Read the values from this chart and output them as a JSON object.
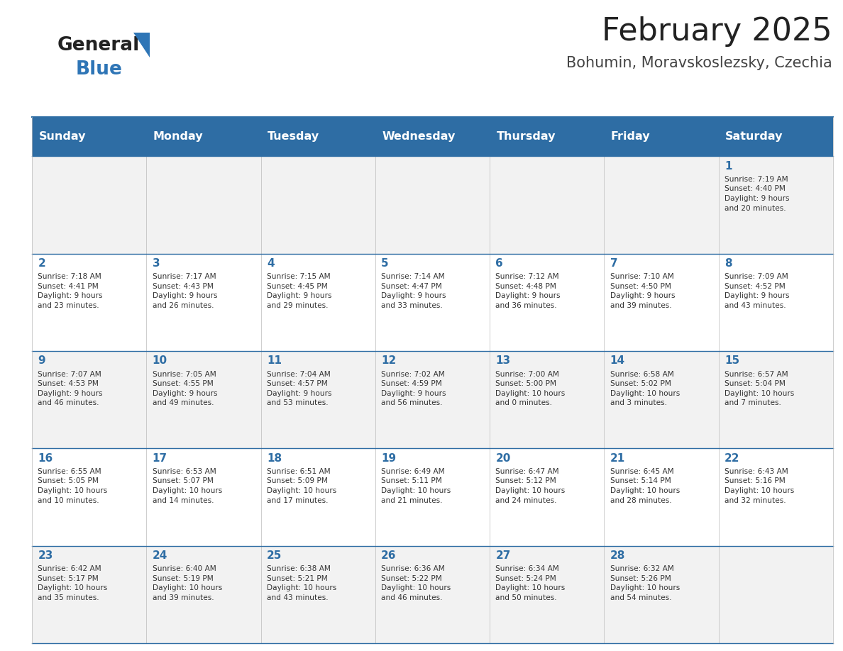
{
  "title": "February 2025",
  "subtitle": "Bohumin, Moravskoslezsky, Czechia",
  "days_of_week": [
    "Sunday",
    "Monday",
    "Tuesday",
    "Wednesday",
    "Thursday",
    "Friday",
    "Saturday"
  ],
  "header_bg": "#2E6DA4",
  "header_text": "#FFFFFF",
  "cell_bg": "#F2F2F2",
  "cell_bg_alt": "#FFFFFF",
  "border_color": "#2E6DA4",
  "day_number_color": "#2E6DA4",
  "cell_text_color": "#333333",
  "title_color": "#222222",
  "subtitle_color": "#444444",
  "logo_general_color": "#222222",
  "logo_blue_color": "#2E75B6",
  "weeks": [
    [
      {
        "day": null,
        "info": null
      },
      {
        "day": null,
        "info": null
      },
      {
        "day": null,
        "info": null
      },
      {
        "day": null,
        "info": null
      },
      {
        "day": null,
        "info": null
      },
      {
        "day": null,
        "info": null
      },
      {
        "day": 1,
        "info": "Sunrise: 7:19 AM\nSunset: 4:40 PM\nDaylight: 9 hours\nand 20 minutes."
      }
    ],
    [
      {
        "day": 2,
        "info": "Sunrise: 7:18 AM\nSunset: 4:41 PM\nDaylight: 9 hours\nand 23 minutes."
      },
      {
        "day": 3,
        "info": "Sunrise: 7:17 AM\nSunset: 4:43 PM\nDaylight: 9 hours\nand 26 minutes."
      },
      {
        "day": 4,
        "info": "Sunrise: 7:15 AM\nSunset: 4:45 PM\nDaylight: 9 hours\nand 29 minutes."
      },
      {
        "day": 5,
        "info": "Sunrise: 7:14 AM\nSunset: 4:47 PM\nDaylight: 9 hours\nand 33 minutes."
      },
      {
        "day": 6,
        "info": "Sunrise: 7:12 AM\nSunset: 4:48 PM\nDaylight: 9 hours\nand 36 minutes."
      },
      {
        "day": 7,
        "info": "Sunrise: 7:10 AM\nSunset: 4:50 PM\nDaylight: 9 hours\nand 39 minutes."
      },
      {
        "day": 8,
        "info": "Sunrise: 7:09 AM\nSunset: 4:52 PM\nDaylight: 9 hours\nand 43 minutes."
      }
    ],
    [
      {
        "day": 9,
        "info": "Sunrise: 7:07 AM\nSunset: 4:53 PM\nDaylight: 9 hours\nand 46 minutes."
      },
      {
        "day": 10,
        "info": "Sunrise: 7:05 AM\nSunset: 4:55 PM\nDaylight: 9 hours\nand 49 minutes."
      },
      {
        "day": 11,
        "info": "Sunrise: 7:04 AM\nSunset: 4:57 PM\nDaylight: 9 hours\nand 53 minutes."
      },
      {
        "day": 12,
        "info": "Sunrise: 7:02 AM\nSunset: 4:59 PM\nDaylight: 9 hours\nand 56 minutes."
      },
      {
        "day": 13,
        "info": "Sunrise: 7:00 AM\nSunset: 5:00 PM\nDaylight: 10 hours\nand 0 minutes."
      },
      {
        "day": 14,
        "info": "Sunrise: 6:58 AM\nSunset: 5:02 PM\nDaylight: 10 hours\nand 3 minutes."
      },
      {
        "day": 15,
        "info": "Sunrise: 6:57 AM\nSunset: 5:04 PM\nDaylight: 10 hours\nand 7 minutes."
      }
    ],
    [
      {
        "day": 16,
        "info": "Sunrise: 6:55 AM\nSunset: 5:05 PM\nDaylight: 10 hours\nand 10 minutes."
      },
      {
        "day": 17,
        "info": "Sunrise: 6:53 AM\nSunset: 5:07 PM\nDaylight: 10 hours\nand 14 minutes."
      },
      {
        "day": 18,
        "info": "Sunrise: 6:51 AM\nSunset: 5:09 PM\nDaylight: 10 hours\nand 17 minutes."
      },
      {
        "day": 19,
        "info": "Sunrise: 6:49 AM\nSunset: 5:11 PM\nDaylight: 10 hours\nand 21 minutes."
      },
      {
        "day": 20,
        "info": "Sunrise: 6:47 AM\nSunset: 5:12 PM\nDaylight: 10 hours\nand 24 minutes."
      },
      {
        "day": 21,
        "info": "Sunrise: 6:45 AM\nSunset: 5:14 PM\nDaylight: 10 hours\nand 28 minutes."
      },
      {
        "day": 22,
        "info": "Sunrise: 6:43 AM\nSunset: 5:16 PM\nDaylight: 10 hours\nand 32 minutes."
      }
    ],
    [
      {
        "day": 23,
        "info": "Sunrise: 6:42 AM\nSunset: 5:17 PM\nDaylight: 10 hours\nand 35 minutes."
      },
      {
        "day": 24,
        "info": "Sunrise: 6:40 AM\nSunset: 5:19 PM\nDaylight: 10 hours\nand 39 minutes."
      },
      {
        "day": 25,
        "info": "Sunrise: 6:38 AM\nSunset: 5:21 PM\nDaylight: 10 hours\nand 43 minutes."
      },
      {
        "day": 26,
        "info": "Sunrise: 6:36 AM\nSunset: 5:22 PM\nDaylight: 10 hours\nand 46 minutes."
      },
      {
        "day": 27,
        "info": "Sunrise: 6:34 AM\nSunset: 5:24 PM\nDaylight: 10 hours\nand 50 minutes."
      },
      {
        "day": 28,
        "info": "Sunrise: 6:32 AM\nSunset: 5:26 PM\nDaylight: 10 hours\nand 54 minutes."
      },
      {
        "day": null,
        "info": null
      }
    ]
  ]
}
